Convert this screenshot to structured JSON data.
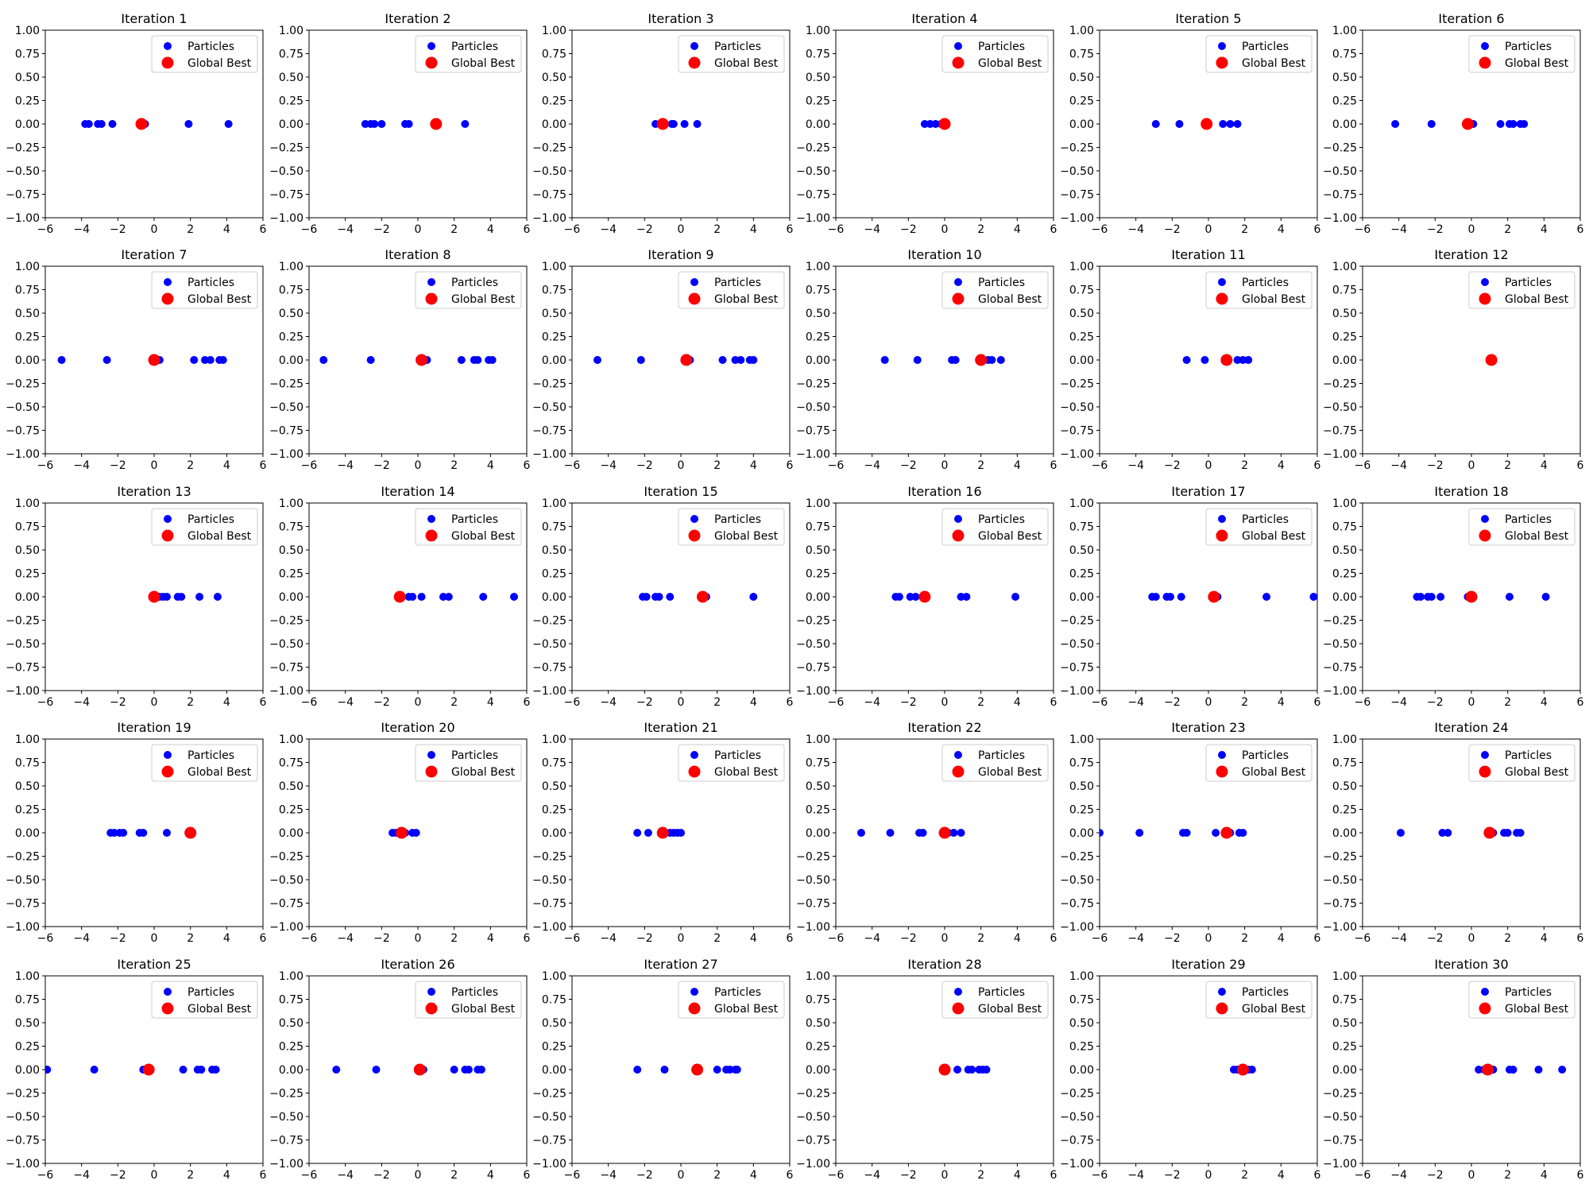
{
  "chart_data": {
    "type": "scatter",
    "layout": {
      "rows": 5,
      "cols": 6
    },
    "xlim": [
      -6,
      6
    ],
    "ylim": [
      -1,
      1
    ],
    "xticks": [
      "−6",
      "−4",
      "−2",
      "0",
      "2",
      "4",
      "6"
    ],
    "yticks": [
      "1.00",
      "0.75",
      "0.50",
      "0.25",
      "0.00",
      "−0.25",
      "−0.50",
      "−0.75",
      "−1.00"
    ],
    "legend": {
      "placement": "top-right",
      "entries": [
        "Particles",
        "Global Best"
      ]
    },
    "colors": {
      "particles": "#0000ff",
      "global_best": "#ff0000"
    },
    "panels": [
      {
        "title": "Iteration 1",
        "particles": [
          -3.8,
          -3.6,
          -3.1,
          -2.9,
          -2.3,
          -0.6,
          -0.5,
          1.9,
          4.1
        ],
        "global_best": -0.7
      },
      {
        "title": "Iteration 2",
        "particles": [
          -2.9,
          -2.6,
          -2.4,
          -2.0,
          -0.7,
          -0.5,
          1.1,
          2.6
        ],
        "global_best": 1.0
      },
      {
        "title": "Iteration 3",
        "particles": [
          -1.4,
          -1.1,
          -0.5,
          -0.4,
          0.2,
          0.9
        ],
        "global_best": -1.0
      },
      {
        "title": "Iteration 4",
        "particles": [
          -1.1,
          -0.8,
          -0.5,
          -0.2,
          0.0
        ],
        "global_best": 0.0
      },
      {
        "title": "Iteration 5",
        "particles": [
          -2.9,
          -1.6,
          -0.1,
          0.8,
          1.2,
          1.6
        ],
        "global_best": -0.1
      },
      {
        "title": "Iteration 6",
        "particles": [
          -4.2,
          -2.2,
          0.1,
          1.6,
          2.1,
          2.3,
          2.7,
          2.9
        ],
        "global_best": -0.2
      },
      {
        "title": "Iteration 7",
        "particles": [
          -5.1,
          -2.6,
          0.3,
          2.2,
          2.8,
          3.1,
          3.6,
          3.8
        ],
        "global_best": 0.0
      },
      {
        "title": "Iteration 8",
        "particles": [
          -5.2,
          -2.6,
          0.5,
          2.4,
          3.1,
          3.3,
          3.9,
          4.1
        ],
        "global_best": 0.2
      },
      {
        "title": "Iteration 9",
        "particles": [
          -4.6,
          -2.2,
          0.5,
          2.3,
          3.0,
          3.3,
          3.8,
          4.0
        ],
        "global_best": 0.3
      },
      {
        "title": "Iteration 10",
        "particles": [
          -3.3,
          -1.5,
          0.4,
          0.6,
          2.4,
          2.6,
          3.1
        ],
        "global_best": 2.0
      },
      {
        "title": "Iteration 11",
        "particles": [
          -1.2,
          -0.2,
          1.0,
          1.6,
          1.9,
          2.2
        ],
        "global_best": 1.0
      },
      {
        "title": "Iteration 12",
        "particles": [
          1.1
        ],
        "global_best": 1.1
      },
      {
        "title": "Iteration 13",
        "particles": [
          0.3,
          0.5,
          0.7,
          1.3,
          1.5,
          2.5,
          3.5
        ],
        "global_best": 0.0
      },
      {
        "title": "Iteration 14",
        "particles": [
          -0.5,
          -0.3,
          0.2,
          1.4,
          1.7,
          3.6,
          5.3
        ],
        "global_best": -1.0
      },
      {
        "title": "Iteration 15",
        "particles": [
          -2.1,
          -1.9,
          -1.4,
          -1.2,
          -0.6,
          1.3,
          1.4,
          4.0
        ],
        "global_best": 1.2
      },
      {
        "title": "Iteration 16",
        "particles": [
          -2.7,
          -2.5,
          -1.9,
          -1.6,
          -1.2,
          0.9,
          1.2,
          3.9
        ],
        "global_best": -1.1
      },
      {
        "title": "Iteration 17",
        "particles": [
          -3.1,
          -2.9,
          -2.3,
          -2.1,
          -1.5,
          0.5,
          3.2,
          5.8
        ],
        "global_best": 0.3
      },
      {
        "title": "Iteration 18",
        "particles": [
          -3.0,
          -2.8,
          -2.4,
          -2.2,
          -1.7,
          -0.2,
          0.0,
          2.1,
          4.1
        ],
        "global_best": 0.0
      },
      {
        "title": "Iteration 19",
        "particles": [
          -2.4,
          -2.2,
          -1.9,
          -1.7,
          -0.8,
          -0.6,
          0.7
        ],
        "global_best": 2.0
      },
      {
        "title": "Iteration 20",
        "particles": [
          -1.4,
          -1.2,
          -0.9,
          -0.7,
          -0.3,
          -0.1
        ],
        "global_best": -0.9
      },
      {
        "title": "Iteration 21",
        "particles": [
          -2.4,
          -1.8,
          -0.9,
          -0.6,
          -0.4,
          -0.2,
          0.0
        ],
        "global_best": -1.0
      },
      {
        "title": "Iteration 22",
        "particles": [
          -4.6,
          -3.0,
          -1.4,
          -1.2,
          0.2,
          0.5,
          0.9
        ],
        "global_best": 0.0
      },
      {
        "title": "Iteration 23",
        "particles": [
          -6.0,
          -3.8,
          -1.4,
          -1.2,
          0.4,
          1.2,
          1.7,
          1.9
        ],
        "global_best": 1.0
      },
      {
        "title": "Iteration 24",
        "particles": [
          -3.9,
          -1.6,
          -1.3,
          1.2,
          1.8,
          2.0,
          2.5,
          2.7
        ],
        "global_best": 1.0
      },
      {
        "title": "Iteration 25",
        "particles": [
          -5.9,
          -3.3,
          -0.6,
          -0.2,
          1.6,
          2.4,
          2.6,
          3.2,
          3.4
        ],
        "global_best": -0.3
      },
      {
        "title": "Iteration 26",
        "particles": [
          -4.5,
          -2.3,
          0.3,
          2.0,
          2.6,
          2.8,
          3.3,
          3.5
        ],
        "global_best": 0.1
      },
      {
        "title": "Iteration 27",
        "particles": [
          -2.4,
          -0.9,
          0.9,
          2.0,
          2.5,
          2.7,
          3.0,
          3.1
        ],
        "global_best": 0.9
      },
      {
        "title": "Iteration 28",
        "particles": [
          0.7,
          1.3,
          1.5,
          1.9,
          2.1,
          2.3
        ],
        "global_best": 0.0
      },
      {
        "title": "Iteration 29",
        "particles": [
          1.4,
          1.6,
          1.9,
          2.2,
          2.4
        ],
        "global_best": 1.9
      },
      {
        "title": "Iteration 30",
        "particles": [
          0.4,
          0.7,
          1.2,
          2.1,
          2.3,
          3.7,
          5.0
        ],
        "global_best": 0.9
      }
    ]
  }
}
